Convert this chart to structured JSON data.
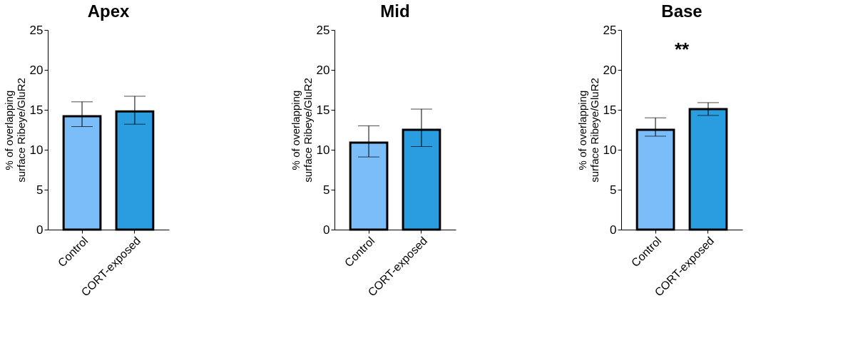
{
  "chart_data": [
    {
      "type": "bar",
      "title": "Apex",
      "ylabel": "% of overlapping\nsurface Ribeye/GluR2",
      "categories": [
        "Control",
        "CORT-exposed"
      ],
      "values": [
        14.2,
        14.8
      ],
      "errors": [
        [
          12.9,
          16.0
        ],
        [
          13.2,
          16.7
        ]
      ],
      "colors": [
        "#7bbdf8",
        "#2a9de0"
      ],
      "ylim": [
        0,
        25
      ],
      "yticks": [
        0,
        5,
        10,
        15,
        20,
        25
      ],
      "grid": false
    },
    {
      "type": "bar",
      "title": "Mid",
      "ylabel": "% of overlapping\nsurface Ribeye/GluR2",
      "categories": [
        "Control",
        "CORT-exposed"
      ],
      "values": [
        10.9,
        12.5
      ],
      "errors": [
        [
          9.1,
          13.0
        ],
        [
          10.4,
          15.1
        ]
      ],
      "colors": [
        "#7bbdf8",
        "#2a9de0"
      ],
      "ylim": [
        0,
        25
      ],
      "yticks": [
        0,
        5,
        10,
        15,
        20,
        25
      ],
      "grid": false
    },
    {
      "type": "bar",
      "title": "Base",
      "ylabel": "% of overlapping\nsurface Ribeye/GluR2",
      "categories": [
        "Control",
        "CORT-exposed"
      ],
      "values": [
        12.5,
        15.1
      ],
      "errors": [
        [
          11.7,
          14.0
        ],
        [
          14.3,
          15.9
        ]
      ],
      "colors": [
        "#7bbdf8",
        "#2a9de0"
      ],
      "ylim": [
        0,
        25
      ],
      "yticks": [
        0,
        5,
        10,
        15,
        20,
        25
      ],
      "grid": false,
      "annotations": [
        "**"
      ]
    }
  ]
}
